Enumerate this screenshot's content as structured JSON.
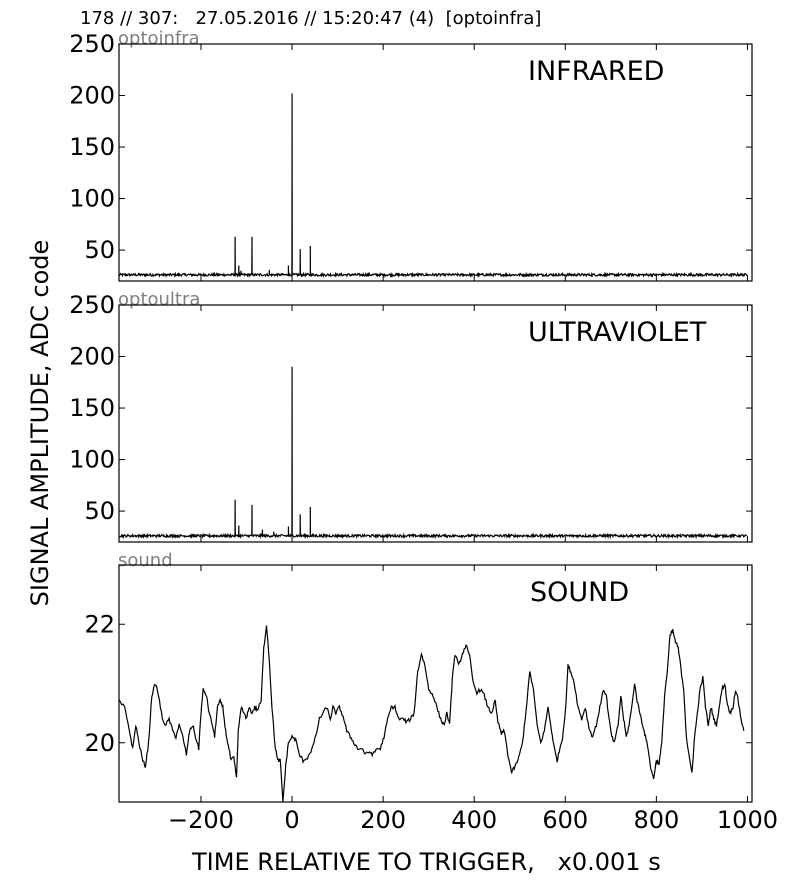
{
  "header": "178 // 307:   27.05.2016 // 15:20:47 (4)  [optoinfra]",
  "ylabel": "SIGNAL AMPLITUDE,  ADC code",
  "xlabel": "TIME RELATIVE TO TRIGGER,   x0.001 s",
  "chart_data": [
    {
      "type": "line",
      "tag": "optoinfra",
      "title": "INFRARED",
      "xlim": [
        -380,
        1010
      ],
      "ylim": [
        20,
        250
      ],
      "yticks": [
        50,
        100,
        150,
        200,
        250
      ],
      "xticks": [
        -200,
        0,
        200,
        400,
        600,
        800,
        1000
      ],
      "baseline": 26,
      "noise": 1.2,
      "spikes": [
        [
          -125,
          63
        ],
        [
          -117,
          35
        ],
        [
          -112,
          30
        ],
        [
          -88,
          63
        ],
        [
          -50,
          31
        ],
        [
          -8,
          35
        ],
        [
          0,
          202
        ],
        [
          18,
          51
        ],
        [
          40,
          54
        ]
      ]
    },
    {
      "type": "line",
      "tag": "optoultra",
      "title": "ULTRAVIOLET",
      "xlim": [
        -380,
        1010
      ],
      "ylim": [
        20,
        250
      ],
      "yticks": [
        50,
        100,
        150,
        200,
        250
      ],
      "xticks": [
        -200,
        0,
        200,
        400,
        600,
        800,
        1000
      ],
      "baseline": 26,
      "noise": 1.2,
      "spikes": [
        [
          -125,
          61
        ],
        [
          -117,
          36
        ],
        [
          -88,
          56
        ],
        [
          -65,
          32
        ],
        [
          -40,
          30
        ],
        [
          -8,
          35
        ],
        [
          0,
          190
        ],
        [
          18,
          47
        ],
        [
          40,
          54
        ]
      ]
    },
    {
      "type": "line",
      "tag": "sound",
      "title": "SOUND",
      "xlim": [
        -380,
        1010
      ],
      "ylim": [
        19.0,
        23.0
      ],
      "yticks": [
        20,
        22
      ],
      "xticks": [
        -200,
        0,
        200,
        400,
        600,
        800,
        1000
      ],
      "xticklabels": [
        "−200",
        "0",
        "200",
        "400",
        "600",
        "800",
        "1000"
      ],
      "points": [
        [
          -380,
          20.7
        ],
        [
          -368,
          20.6
        ],
        [
          -358,
          20.25
        ],
        [
          -350,
          19.9
        ],
        [
          -343,
          20.3
        ],
        [
          -336,
          20.0
        ],
        [
          -328,
          19.7
        ],
        [
          -322,
          19.6
        ],
        [
          -315,
          20.0
        ],
        [
          -308,
          20.8
        ],
        [
          -300,
          21.0
        ],
        [
          -293,
          20.8
        ],
        [
          -285,
          20.4
        ],
        [
          -277,
          20.3
        ],
        [
          -270,
          20.4
        ],
        [
          -262,
          20.2
        ],
        [
          -255,
          20.1
        ],
        [
          -248,
          20.3
        ],
        [
          -240,
          20.1
        ],
        [
          -232,
          19.8
        ],
        [
          -225,
          20.2
        ],
        [
          -218,
          20.3
        ],
        [
          -212,
          20.1
        ],
        [
          -205,
          19.9
        ],
        [
          -200,
          20.5
        ],
        [
          -195,
          20.9
        ],
        [
          -188,
          20.8
        ],
        [
          -182,
          20.5
        ],
        [
          -175,
          20.3
        ],
        [
          -170,
          20.1
        ],
        [
          -164,
          20.6
        ],
        [
          -158,
          20.7
        ],
        [
          -152,
          20.6
        ],
        [
          -146,
          20.2
        ],
        [
          -140,
          19.95
        ],
        [
          -134,
          19.7
        ],
        [
          -128,
          19.75
        ],
        [
          -122,
          19.4
        ],
        [
          -118,
          20.2
        ],
        [
          -112,
          20.6
        ],
        [
          -106,
          20.5
        ],
        [
          -100,
          20.4
        ],
        [
          -95,
          20.6
        ],
        [
          -88,
          20.5
        ],
        [
          -82,
          20.6
        ],
        [
          -76,
          20.55
        ],
        [
          -68,
          20.7
        ],
        [
          -62,
          21.6
        ],
        [
          -56,
          22.0
        ],
        [
          -50,
          21.4
        ],
        [
          -44,
          20.6
        ],
        [
          -38,
          20.0
        ],
        [
          -32,
          19.7
        ],
        [
          -26,
          19.7
        ],
        [
          -20,
          19.0
        ],
        [
          -14,
          19.6
        ],
        [
          -8,
          20.0
        ],
        [
          0,
          20.1
        ],
        [
          8,
          20.05
        ],
        [
          16,
          19.8
        ],
        [
          24,
          19.7
        ],
        [
          34,
          19.75
        ],
        [
          44,
          19.9
        ],
        [
          52,
          20.1
        ],
        [
          60,
          20.4
        ],
        [
          68,
          20.5
        ],
        [
          76,
          20.6
        ],
        [
          84,
          20.4
        ],
        [
          90,
          20.6
        ],
        [
          96,
          20.5
        ],
        [
          104,
          20.6
        ],
        [
          112,
          20.45
        ],
        [
          120,
          20.2
        ],
        [
          128,
          20.1
        ],
        [
          136,
          20.0
        ],
        [
          144,
          19.9
        ],
        [
          154,
          19.9
        ],
        [
          162,
          19.8
        ],
        [
          170,
          19.85
        ],
        [
          178,
          19.8
        ],
        [
          186,
          19.9
        ],
        [
          194,
          19.9
        ],
        [
          202,
          20.1
        ],
        [
          210,
          20.4
        ],
        [
          218,
          20.6
        ],
        [
          226,
          20.6
        ],
        [
          234,
          20.4
        ],
        [
          244,
          20.4
        ],
        [
          252,
          20.35
        ],
        [
          260,
          20.4
        ],
        [
          268,
          20.5
        ],
        [
          276,
          21.2
        ],
        [
          284,
          21.5
        ],
        [
          292,
          21.3
        ],
        [
          300,
          20.9
        ],
        [
          310,
          20.8
        ],
        [
          318,
          20.6
        ],
        [
          326,
          20.4
        ],
        [
          334,
          20.3
        ],
        [
          340,
          20.5
        ],
        [
          346,
          20.3
        ],
        [
          352,
          21.1
        ],
        [
          358,
          21.5
        ],
        [
          366,
          21.3
        ],
        [
          374,
          21.5
        ],
        [
          382,
          21.65
        ],
        [
          390,
          21.45
        ],
        [
          398,
          21.0
        ],
        [
          406,
          20.85
        ],
        [
          414,
          20.9
        ],
        [
          422,
          20.8
        ],
        [
          430,
          20.6
        ],
        [
          438,
          20.5
        ],
        [
          446,
          20.7
        ],
        [
          452,
          20.35
        ],
        [
          460,
          20.15
        ],
        [
          466,
          20.2
        ],
        [
          474,
          19.8
        ],
        [
          482,
          19.5
        ],
        [
          490,
          19.6
        ],
        [
          498,
          19.75
        ],
        [
          506,
          20.0
        ],
        [
          514,
          20.55
        ],
        [
          522,
          21.2
        ],
        [
          530,
          20.9
        ],
        [
          538,
          20.3
        ],
        [
          546,
          20.0
        ],
        [
          554,
          20.2
        ],
        [
          562,
          20.6
        ],
        [
          570,
          20.2
        ],
        [
          576,
          19.9
        ],
        [
          582,
          19.7
        ],
        [
          588,
          19.9
        ],
        [
          594,
          20.1
        ],
        [
          600,
          20.5
        ],
        [
          606,
          21.3
        ],
        [
          612,
          21.2
        ],
        [
          620,
          21.0
        ],
        [
          628,
          20.6
        ],
        [
          636,
          20.4
        ],
        [
          644,
          20.6
        ],
        [
          652,
          20.25
        ],
        [
          660,
          20.1
        ],
        [
          668,
          20.3
        ],
        [
          676,
          20.6
        ],
        [
          684,
          20.9
        ],
        [
          690,
          20.8
        ],
        [
          696,
          20.4
        ],
        [
          702,
          20.1
        ],
        [
          708,
          20.0
        ],
        [
          716,
          20.3
        ],
        [
          722,
          20.8
        ],
        [
          728,
          20.4
        ],
        [
          734,
          20.1
        ],
        [
          740,
          20.3
        ],
        [
          746,
          20.6
        ],
        [
          752,
          21.0
        ],
        [
          758,
          20.7
        ],
        [
          764,
          20.5
        ],
        [
          770,
          20.3
        ],
        [
          776,
          20.1
        ],
        [
          782,
          19.9
        ],
        [
          788,
          19.55
        ],
        [
          794,
          19.4
        ],
        [
          800,
          19.7
        ],
        [
          806,
          19.65
        ],
        [
          812,
          20.0
        ],
        [
          818,
          20.8
        ],
        [
          824,
          21.2
        ],
        [
          830,
          21.8
        ],
        [
          836,
          21.9
        ],
        [
          842,
          21.7
        ],
        [
          848,
          21.6
        ],
        [
          854,
          21.25
        ],
        [
          860,
          20.9
        ],
        [
          866,
          20.1
        ],
        [
          872,
          19.75
        ],
        [
          878,
          19.5
        ],
        [
          884,
          20.1
        ],
        [
          890,
          20.5
        ],
        [
          896,
          20.9
        ],
        [
          902,
          21.1
        ],
        [
          908,
          20.6
        ],
        [
          914,
          20.3
        ],
        [
          920,
          20.6
        ],
        [
          926,
          20.4
        ],
        [
          932,
          20.3
        ],
        [
          938,
          20.6
        ],
        [
          944,
          20.9
        ],
        [
          950,
          21.0
        ],
        [
          956,
          20.65
        ],
        [
          962,
          20.5
        ],
        [
          968,
          20.6
        ],
        [
          974,
          20.9
        ],
        [
          980,
          20.7
        ],
        [
          986,
          20.4
        ],
        [
          992,
          20.2
        ]
      ]
    }
  ]
}
